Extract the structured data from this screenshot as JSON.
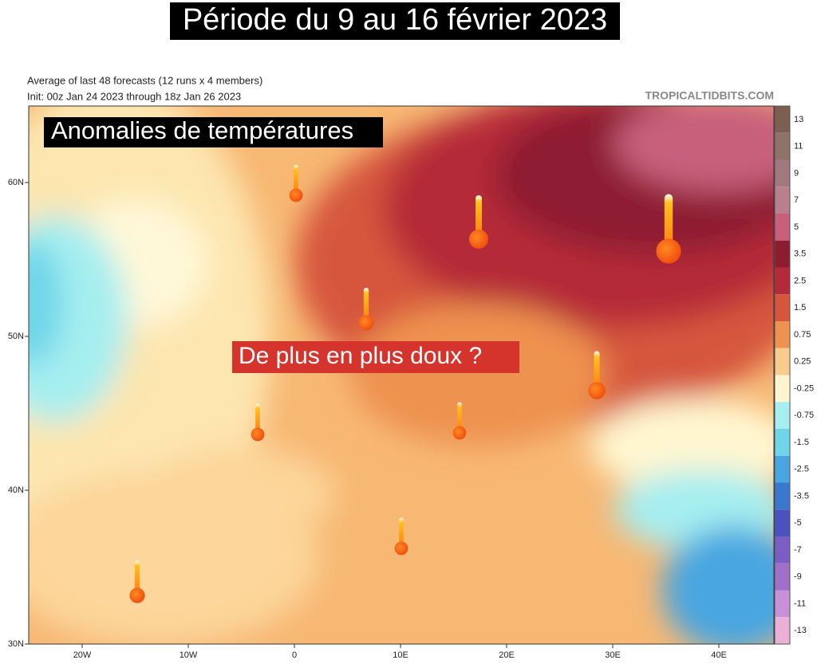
{
  "header": {
    "title": "Période du 9 au 16 février 2023",
    "subtitle": [
      "Average of last 48 forecasts (12 runs x 4 members)",
      "Init: 00z Jan 24 2023 through 18z Jan 26 2023"
    ],
    "credit": "TROPICALTIDBITS.COM"
  },
  "map": {
    "labels": [
      "Anomalies de températures",
      "De plus en plus doux ?"
    ],
    "x_ticks": [
      "20W",
      "10W",
      "0",
      "10E",
      "20E",
      "30E",
      "40E"
    ],
    "y_ticks": [
      "60N",
      "50N",
      "40N",
      "30N"
    ]
  },
  "colorbar": {
    "levels": [
      13,
      11,
      9,
      7,
      5,
      3.5,
      2.5,
      1.5,
      0.75,
      0.25,
      -0.25,
      -0.75,
      -1.5,
      -2.5,
      -3.5,
      -5,
      -7,
      -9,
      -11,
      -13
    ],
    "colors": [
      "#7d5f52",
      "#8f7368",
      "#a0787e",
      "#b8808e",
      "#c8607c",
      "#8e1c30",
      "#b52a38",
      "#d6563c",
      "#ee9250",
      "#f8cc8c",
      "#fff6d0",
      "#a6eef0",
      "#6ed6e8",
      "#4aa6e0",
      "#3a78d0",
      "#4a52c0",
      "#7a5ec6",
      "#a070c8",
      "#c890d8",
      "#eab0d6"
    ]
  }
}
